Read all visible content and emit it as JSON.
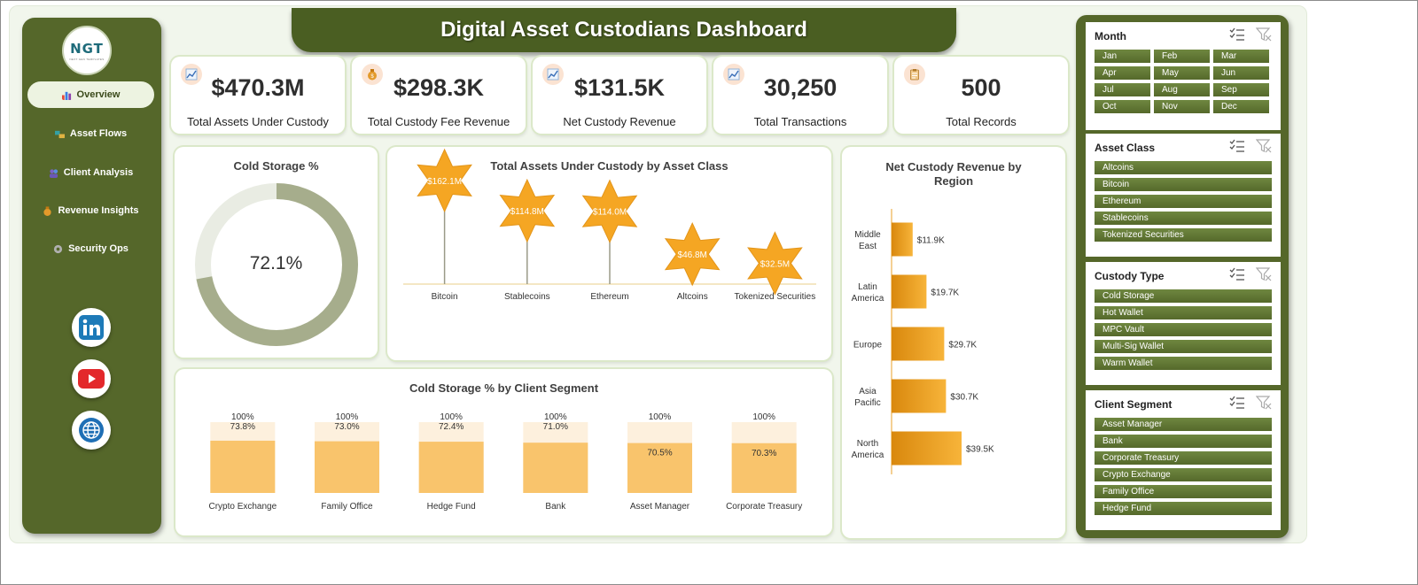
{
  "title": "Digital Asset Custodians Dashboard",
  "logo": {
    "text": "NGT",
    "subtext": "NEXT GEN TEMPLATES"
  },
  "nav": [
    {
      "label": "Overview",
      "icon": "bar-chart-icon",
      "active": true
    },
    {
      "label": "Asset Flows",
      "icon": "flow-icon",
      "active": false
    },
    {
      "label": "Client Analysis",
      "icon": "people-icon",
      "active": false
    },
    {
      "label": "Revenue Insights",
      "icon": "money-bag-icon",
      "active": false
    },
    {
      "label": "Security Ops",
      "icon": "gear-icon",
      "active": false
    }
  ],
  "social": [
    "linkedin-icon",
    "youtube-icon",
    "globe-icon"
  ],
  "kpis": [
    {
      "value": "$470.3M",
      "label": "Total Assets Under Custody",
      "icon": "trend-chart-icon"
    },
    {
      "value": "$298.3K",
      "label": "Total Custody Fee Revenue",
      "icon": "money-bag-icon"
    },
    {
      "value": "$131.5K",
      "label": "Net Custody Revenue",
      "icon": "trend-chart-icon"
    },
    {
      "value": "30,250",
      "label": "Total Transactions",
      "icon": "trend-chart-icon"
    },
    {
      "value": "500",
      "label": "Total Records",
      "icon": "clipboard-icon"
    }
  ],
  "colors": {
    "sidebar": "#55672a",
    "accent": "#f5a623",
    "donut": "#a6ad8c",
    "donut_track": "#e9ece3",
    "bar_fill": "#f9c46c",
    "bar_bg": "#fdf0dd"
  },
  "chart_data": [
    {
      "type": "pie",
      "title": "Cold Storage %",
      "value": 72.1,
      "value_label": "72.1%"
    },
    {
      "type": "scatter",
      "title": "Total Assets Under Custody by Asset Class",
      "categories": [
        "Bitcoin",
        "Stablecoins",
        "Ethereum",
        "Altcoins",
        "Tokenized Securities"
      ],
      "values": [
        162.1,
        114.8,
        114.0,
        46.8,
        32.5
      ],
      "labels": [
        "$162.1M",
        "$114.8M",
        "$114.0M",
        "$46.8M",
        "$32.5M"
      ],
      "unit": "M"
    },
    {
      "type": "bar",
      "orientation": "horizontal",
      "title": "Net Custody Revenue by Region",
      "categories": [
        "Middle East",
        "Latin America",
        "Europe",
        "Asia Pacific",
        "North America"
      ],
      "values": [
        11.9,
        19.7,
        29.7,
        30.7,
        39.5
      ],
      "labels": [
        "$11.9K",
        "$19.7K",
        "$29.7K",
        "$30.7K",
        "$39.5K"
      ],
      "unit": "K"
    },
    {
      "type": "bar",
      "title": "Cold Storage % by Client Segment",
      "categories": [
        "Crypto Exchange",
        "Family Office",
        "Hedge Fund",
        "Bank",
        "Asset Manager",
        "Corporate Treasury"
      ],
      "series": [
        {
          "values": [
            73.8,
            73.0,
            72.4,
            71.0,
            70.5,
            70.3
          ],
          "labels": [
            "73.8%",
            "73.0%",
            "72.4%",
            "71.0%",
            "70.5%",
            "70.3%"
          ]
        },
        {
          "values": [
            100,
            100,
            100,
            100,
            100,
            100
          ],
          "labels": [
            "100%",
            "100%",
            "100%",
            "100%",
            "100%",
            "100%"
          ]
        }
      ]
    }
  ],
  "slicers": [
    {
      "title": "Month",
      "grid": true,
      "items": [
        "Jan",
        "Feb",
        "Mar",
        "Apr",
        "May",
        "Jun",
        "Jul",
        "Aug",
        "Sep",
        "Oct",
        "Nov",
        "Dec"
      ]
    },
    {
      "title": "Asset Class",
      "grid": false,
      "items": [
        "Altcoins",
        "Bitcoin",
        "Ethereum",
        "Stablecoins",
        "Tokenized Securities"
      ]
    },
    {
      "title": "Custody Type",
      "grid": false,
      "items": [
        "Cold Storage",
        "Hot Wallet",
        "MPC Vault",
        "Multi-Sig Wallet",
        "Warm Wallet"
      ]
    },
    {
      "title": "Client Segment",
      "grid": false,
      "items": [
        "Asset Manager",
        "Bank",
        "Corporate Treasury",
        "Crypto Exchange",
        "Family Office",
        "Hedge Fund"
      ]
    }
  ]
}
